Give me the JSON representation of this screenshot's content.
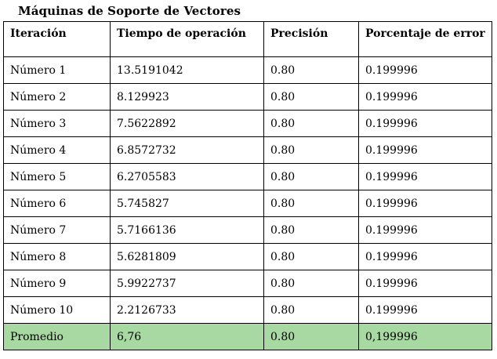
{
  "title": "Máquinas de Soporte de Vectores",
  "table": {
    "headers": [
      "Iteración",
      "Tiempo de operación",
      "Precisión",
      "Porcentaje de error"
    ],
    "rows": [
      [
        "Número 1",
        "13.5191042",
        "0.80",
        "0.199996"
      ],
      [
        "Número 2",
        "8.129923",
        "0.80",
        "0.199996"
      ],
      [
        "Número 3",
        "7.5622892",
        "0.80",
        "0.199996"
      ],
      [
        "Número 4",
        "6.8572732",
        "0.80",
        "0.199996"
      ],
      [
        "Número 5",
        "6.2705583",
        "0.80",
        "0.199996"
      ],
      [
        "Número 6",
        "5.745827",
        "0.80",
        "0.199996"
      ],
      [
        "Número 7",
        "5.7166136",
        "0.80",
        "0.199996"
      ],
      [
        "Número 8",
        "5.6281809",
        "0.80",
        "0.199996"
      ],
      [
        "Número 9",
        "5.9922737",
        "0.80",
        "0.199996"
      ],
      [
        "Número 10",
        "2.2126733",
        "0.80",
        "0.199996"
      ]
    ],
    "average_row": [
      "Promedio",
      "6,76",
      "0.80",
      "0,199996"
    ]
  },
  "colors": {
    "average_row_bg": "#a9d9a2",
    "border": "#000000"
  }
}
